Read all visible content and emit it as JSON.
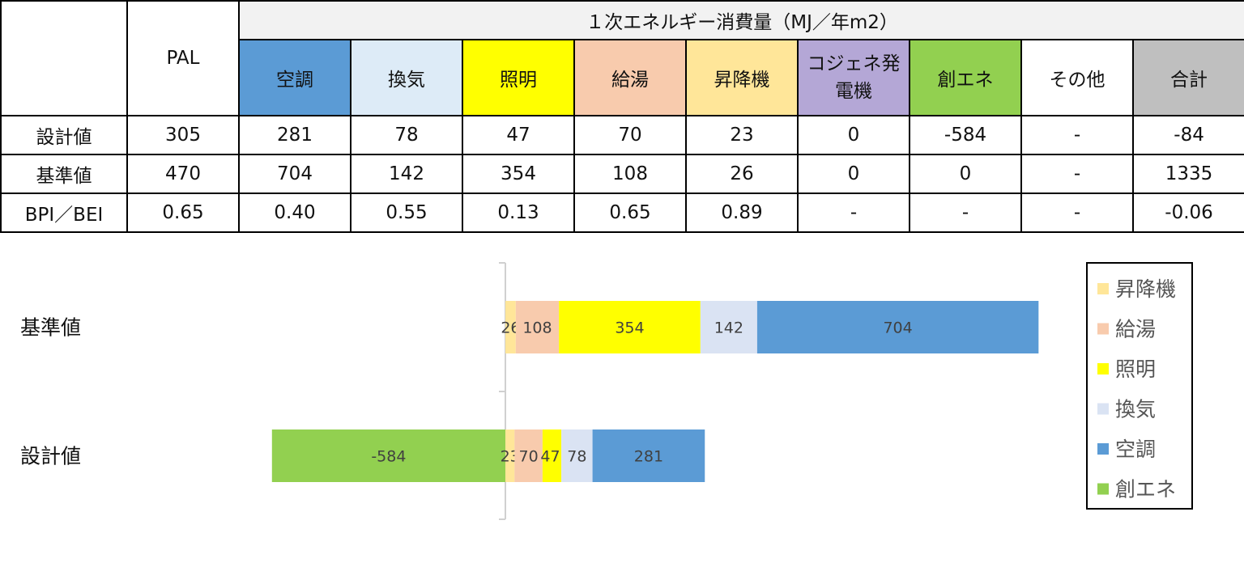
{
  "table": {
    "title": "１次エネルギー消費量（MJ／年m2）",
    "pal_header": "PAL",
    "columns": [
      {
        "key": "kucho",
        "label": "空調",
        "color": "#5b9bd5"
      },
      {
        "key": "kanki",
        "label": "換気",
        "color": "#ddebf7"
      },
      {
        "key": "shomei",
        "label": "照明",
        "color": "#ffff00"
      },
      {
        "key": "kyuto",
        "label": "給湯",
        "color": "#f8cbad"
      },
      {
        "key": "shokoki",
        "label": "昇降機",
        "color": "#ffe699"
      },
      {
        "key": "cogen",
        "label": "コジェネ発電機",
        "color": "#b4a7d6"
      },
      {
        "key": "soene",
        "label": "創エネ",
        "color": "#92d050"
      },
      {
        "key": "other",
        "label": "その他",
        "color": "#ffffff"
      },
      {
        "key": "total",
        "label": "合計",
        "color": "#bfbfbf"
      }
    ],
    "rows": [
      {
        "label": "設計値",
        "cells": [
          "305",
          "281",
          "78",
          "47",
          "70",
          "23",
          "0",
          "-584",
          "-",
          "-84"
        ]
      },
      {
        "label": "基準値",
        "cells": [
          "470",
          "704",
          "142",
          "354",
          "108",
          "26",
          "0",
          "0",
          "-",
          "1335"
        ]
      },
      {
        "label": "BPI／BEI",
        "cells": [
          "0.65",
          "0.40",
          "0.55",
          "0.13",
          "0.65",
          "0.89",
          "-",
          "-",
          "-",
          "-0.06"
        ]
      }
    ]
  },
  "chart_data": {
    "type": "bar",
    "orientation": "horizontal",
    "stacked": true,
    "categories": [
      "基準値",
      "設計値"
    ],
    "series": [
      {
        "name": "創エネ",
        "color": "#92d050",
        "values": [
          0,
          -584
        ]
      },
      {
        "name": "昇降機",
        "color": "#ffe699",
        "values": [
          26,
          23
        ]
      },
      {
        "name": "給湯",
        "color": "#f8cbad",
        "values": [
          108,
          70
        ]
      },
      {
        "name": "照明",
        "color": "#ffff00",
        "values": [
          354,
          47
        ]
      },
      {
        "name": "換気",
        "color": "#dae3f3",
        "values": [
          142,
          78
        ]
      },
      {
        "name": "空調",
        "color": "#5b9bd5",
        "values": [
          704,
          281
        ]
      }
    ],
    "legend": {
      "placement": "right",
      "order": [
        "昇降機",
        "給湯",
        "照明",
        "換気",
        "空調",
        "創エネ"
      ]
    },
    "grid": false
  }
}
